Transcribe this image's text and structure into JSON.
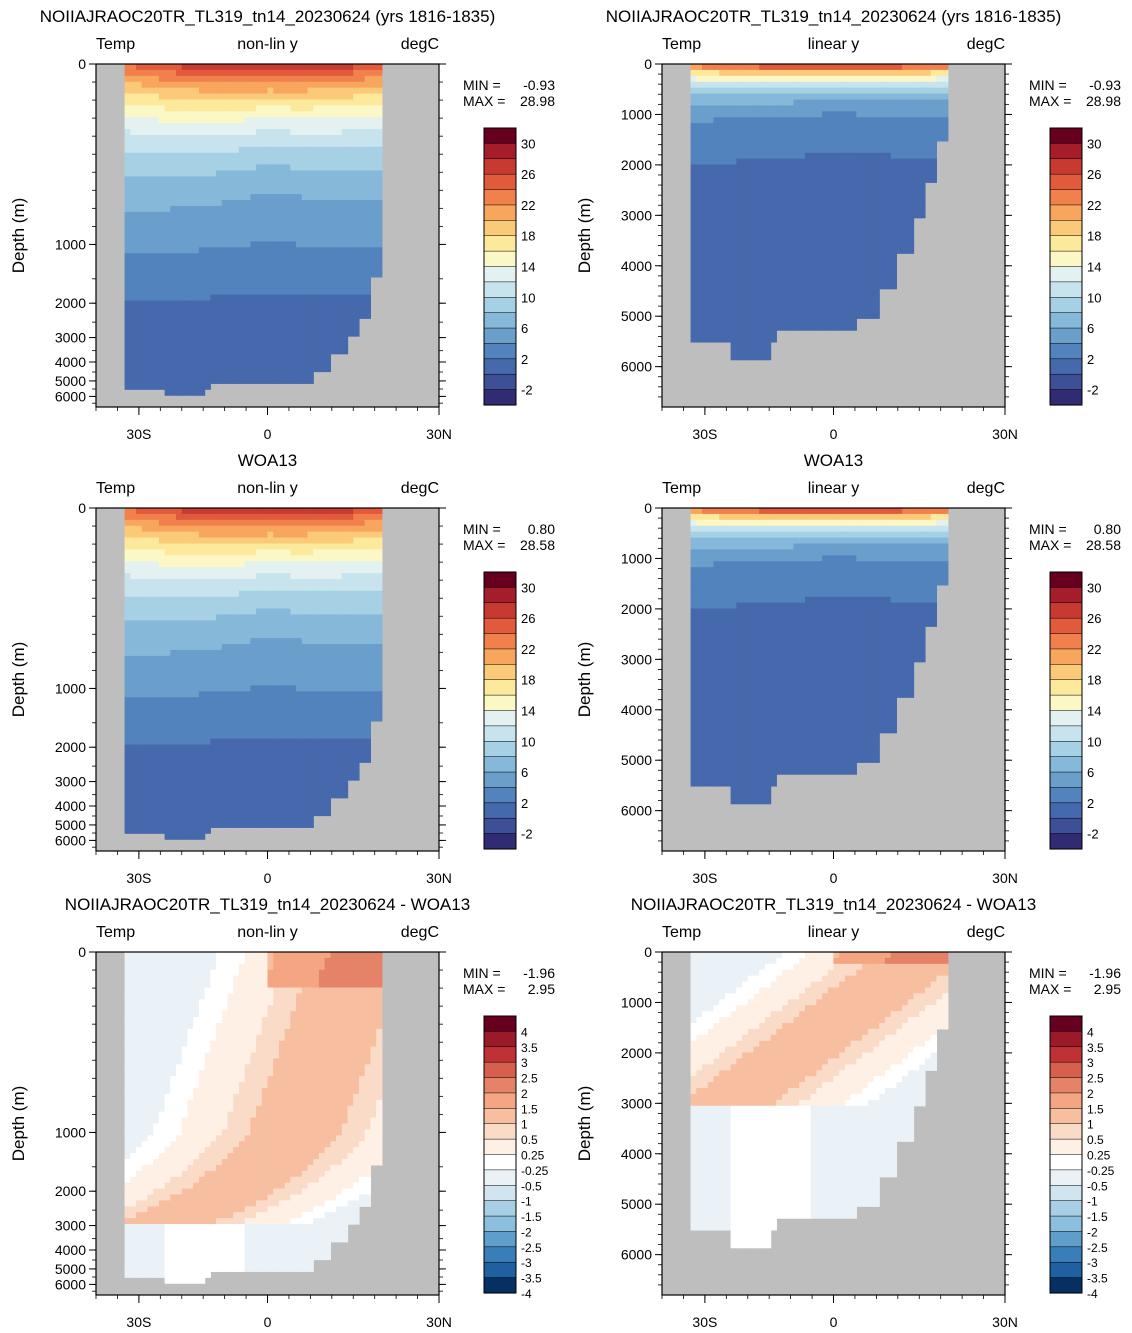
{
  "chart_data": [
    {
      "type": "heatmap",
      "title": "NOIIAJRAOC20TR_TL319_tn14_20230624 (yrs 1816-1835)",
      "left_label": "Temp",
      "center_label": "non-lin y",
      "right_label": "degC",
      "ylabel": "Depth (m)",
      "scale": "nonlin",
      "y_ticks": [
        "0",
        "1000",
        "2000",
        "3000",
        "4000",
        "5000",
        "6000"
      ],
      "x_ticks": [
        "30S",
        "0",
        "30N"
      ],
      "min_label": "MIN =",
      "min_value": "-0.93",
      "max_label": "MAX =",
      "max_value": "28.98",
      "colorbar_labels": [
        "30",
        "26",
        "22",
        "18",
        "14",
        "10",
        "6",
        "2",
        "-2"
      ],
      "field": "temp"
    },
    {
      "type": "heatmap",
      "title": "NOIIAJRAOC20TR_TL319_tn14_20230624 (yrs 1816-1835)",
      "left_label": "Temp",
      "center_label": "linear y",
      "right_label": "degC",
      "ylabel": "Depth (m)",
      "scale": "linear",
      "y_ticks": [
        "0",
        "1000",
        "2000",
        "3000",
        "4000",
        "5000",
        "6000"
      ],
      "x_ticks": [
        "30S",
        "0",
        "30N"
      ],
      "min_label": "MIN =",
      "min_value": "-0.93",
      "max_label": "MAX =",
      "max_value": "28.98",
      "colorbar_labels": [
        "30",
        "26",
        "22",
        "18",
        "14",
        "10",
        "6",
        "2",
        "-2"
      ],
      "field": "temp"
    },
    {
      "type": "heatmap",
      "title": "WOA13",
      "left_label": "Temp",
      "center_label": "non-lin y",
      "right_label": "degC",
      "ylabel": "Depth (m)",
      "scale": "nonlin",
      "y_ticks": [
        "0",
        "1000",
        "2000",
        "3000",
        "4000",
        "5000",
        "6000"
      ],
      "x_ticks": [
        "30S",
        "0",
        "30N"
      ],
      "min_label": "MIN =",
      "min_value": "0.80",
      "max_label": "MAX =",
      "max_value": "28.58",
      "colorbar_labels": [
        "30",
        "26",
        "22",
        "18",
        "14",
        "10",
        "6",
        "2",
        "-2"
      ],
      "field": "temp"
    },
    {
      "type": "heatmap",
      "title": "WOA13",
      "left_label": "Temp",
      "center_label": "linear y",
      "right_label": "degC",
      "ylabel": "Depth (m)",
      "scale": "linear",
      "y_ticks": [
        "0",
        "1000",
        "2000",
        "3000",
        "4000",
        "5000",
        "6000"
      ],
      "x_ticks": [
        "30S",
        "0",
        "30N"
      ],
      "min_label": "MIN =",
      "min_value": "0.80",
      "max_label": "MAX =",
      "max_value": "28.58",
      "colorbar_labels": [
        "30",
        "26",
        "22",
        "18",
        "14",
        "10",
        "6",
        "2",
        "-2"
      ],
      "field": "temp"
    },
    {
      "type": "heatmap",
      "title": "NOIIAJRAOC20TR_TL319_tn14_20230624 - WOA13",
      "left_label": "Temp",
      "center_label": "non-lin y",
      "right_label": "degC",
      "ylabel": "Depth (m)",
      "scale": "nonlin",
      "y_ticks": [
        "0",
        "1000",
        "2000",
        "3000",
        "4000",
        "5000",
        "6000"
      ],
      "x_ticks": [
        "30S",
        "0",
        "30N"
      ],
      "min_label": "MIN =",
      "min_value": "-1.96",
      "max_label": "MAX =",
      "max_value": "2.95",
      "colorbar_labels": [
        "4",
        "3.5",
        "3",
        "2.5",
        "2",
        "1.5",
        "1",
        "0.5",
        "0.25",
        "-0.25",
        "-0.5",
        "-1",
        "-1.5",
        "-2",
        "-2.5",
        "-3",
        "-3.5",
        "-4"
      ],
      "field": "diff"
    },
    {
      "type": "heatmap",
      "title": "NOIIAJRAOC20TR_TL319_tn14_20230624 - WOA13",
      "left_label": "Temp",
      "center_label": "linear y",
      "right_label": "degC",
      "ylabel": "Depth (m)",
      "scale": "linear",
      "y_ticks": [
        "0",
        "1000",
        "2000",
        "3000",
        "4000",
        "5000",
        "6000"
      ],
      "x_ticks": [
        "30S",
        "0",
        "30N"
      ],
      "min_label": "MIN =",
      "min_value": "-1.96",
      "max_label": "MAX =",
      "max_value": "2.95",
      "colorbar_labels": [
        "4",
        "3.5",
        "3",
        "2.5",
        "2",
        "1.5",
        "1",
        "0.5",
        "0.25",
        "-0.25",
        "-0.5",
        "-1",
        "-1.5",
        "-2",
        "-2.5",
        "-3",
        "-3.5",
        "-4"
      ],
      "field": "diff"
    }
  ],
  "colors": {
    "land": "#bebebe",
    "temp_palette": [
      "#67001f",
      "#a51c2b",
      "#c73a31",
      "#e05a3b",
      "#f1804d",
      "#f8a55e",
      "#fbca79",
      "#fde99b",
      "#fbf8c6",
      "#e3f1f1",
      "#c7e3ed",
      "#a6d0e4",
      "#86b9d9",
      "#6a9fcc",
      "#5383bd",
      "#4669ad",
      "#3d4f97",
      "#312b73"
    ],
    "diff_palette": [
      "#67001f",
      "#9b1a29",
      "#bf3135",
      "#d6604d",
      "#e58368",
      "#f4a582",
      "#f7bea0",
      "#fadbc8",
      "#fff0e6",
      "#ffffff",
      "#eaf2f8",
      "#d1e5f0",
      "#a8cfe5",
      "#8bbfdd",
      "#5f9ecb",
      "#3a7eb8",
      "#1e60a0",
      "#053061"
    ]
  }
}
